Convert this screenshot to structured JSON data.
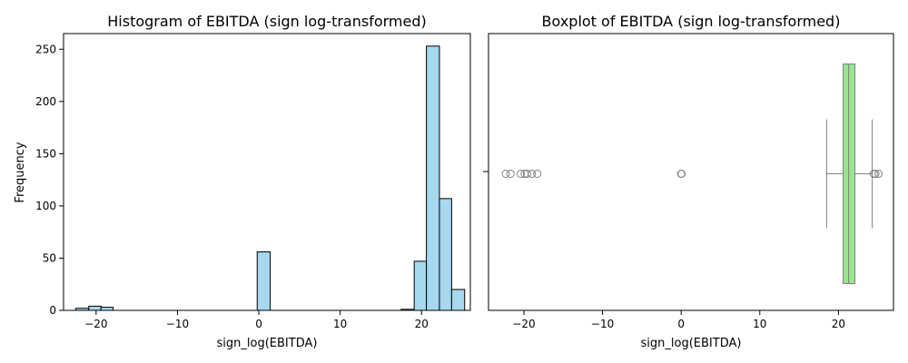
{
  "colors": {
    "hist_fill": "#A6D8F0",
    "hist_edge": "#000000",
    "box_fill": "#98E690",
    "box_edge": "#808080",
    "flier_edge": "#808080"
  },
  "chart_data": [
    {
      "type": "bar",
      "subtype": "histogram",
      "title": "Histogram of EBITDA (sign log-transformed)",
      "xlabel": "sign_log(EBITDA)",
      "ylabel": "Frequency",
      "xlim": [
        -24,
        26
      ],
      "ylim": [
        0,
        265
      ],
      "xticks": [
        -20,
        -10,
        0,
        10,
        20
      ],
      "xtick_labels": [
        "−20",
        "−10",
        "0",
        "10",
        "20"
      ],
      "yticks": [
        0,
        50,
        100,
        150,
        200,
        250
      ],
      "ytick_labels": [
        "0",
        "50",
        "100",
        "150",
        "200",
        "250"
      ],
      "bins": [
        {
          "x0": -22.5,
          "x1": -20.9,
          "count": 2
        },
        {
          "x0": -20.9,
          "x1": -19.4,
          "count": 4
        },
        {
          "x0": -19.4,
          "x1": -17.9,
          "count": 3
        },
        {
          "x0": -0.2,
          "x1": 1.4,
          "count": 56
        },
        {
          "x0": 17.5,
          "x1": 19.1,
          "count": 1
        },
        {
          "x0": 19.1,
          "x1": 20.6,
          "count": 47
        },
        {
          "x0": 20.6,
          "x1": 22.2,
          "count": 253
        },
        {
          "x0": 22.2,
          "x1": 23.7,
          "count": 107
        },
        {
          "x0": 23.7,
          "x1": 25.3,
          "count": 20
        }
      ],
      "grid": false
    },
    {
      "type": "boxplot",
      "title": "Boxplot of EBITDA (sign log-transformed)",
      "xlabel": "sign_log(EBITDA)",
      "xlim": [
        -24.5,
        27
      ],
      "xticks": [
        -20,
        -10,
        0,
        10,
        20
      ],
      "xtick_labels": [
        "−20",
        "−10",
        "0",
        "10",
        "20"
      ],
      "ytick_labels": [
        ""
      ],
      "whisker_low": 18.5,
      "q1": 20.6,
      "median": 21.3,
      "q3": 22.1,
      "whisker_high": 24.3,
      "outliers": [
        -22.3,
        -21.7,
        -20.4,
        -19.9,
        -19.6,
        -19.0,
        -18.3,
        0.0,
        0.05,
        24.5,
        24.7,
        25.1
      ],
      "grid": false
    }
  ]
}
